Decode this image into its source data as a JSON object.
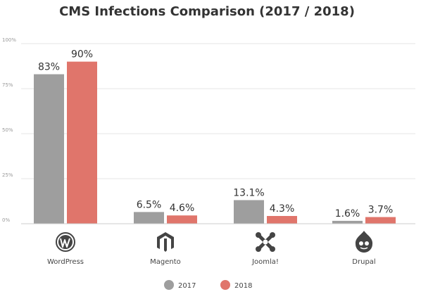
{
  "chart_data": {
    "type": "bar",
    "title": "CMS Infections Comparison (2017 / 2018)",
    "categories": [
      "WordPress",
      "Magento",
      "Joomla!",
      "Drupal"
    ],
    "category_icons": [
      "wordpress-icon",
      "magento-icon",
      "joomla-icon",
      "drupal-icon"
    ],
    "series": [
      {
        "name": "2017",
        "values": [
          83,
          6.5,
          13.1,
          1.6
        ],
        "labels": [
          "83%",
          "6.5%",
          "13.1%",
          "1.6%"
        ],
        "color": "#9e9e9e"
      },
      {
        "name": "2018",
        "values": [
          90,
          4.6,
          4.3,
          3.7
        ],
        "labels": [
          "90%",
          "4.6%",
          "4.3%",
          "3.7%"
        ],
        "color": "#e0756b"
      }
    ],
    "yticks": [
      {
        "value": 0,
        "label": "0%"
      },
      {
        "value": 25,
        "label": "25%"
      },
      {
        "value": 50,
        "label": "50%"
      },
      {
        "value": 75,
        "label": "75%"
      },
      {
        "value": 100,
        "label": "100%"
      }
    ],
    "ylim": [
      0,
      100
    ],
    "grid": true,
    "legend_position": "bottom"
  }
}
